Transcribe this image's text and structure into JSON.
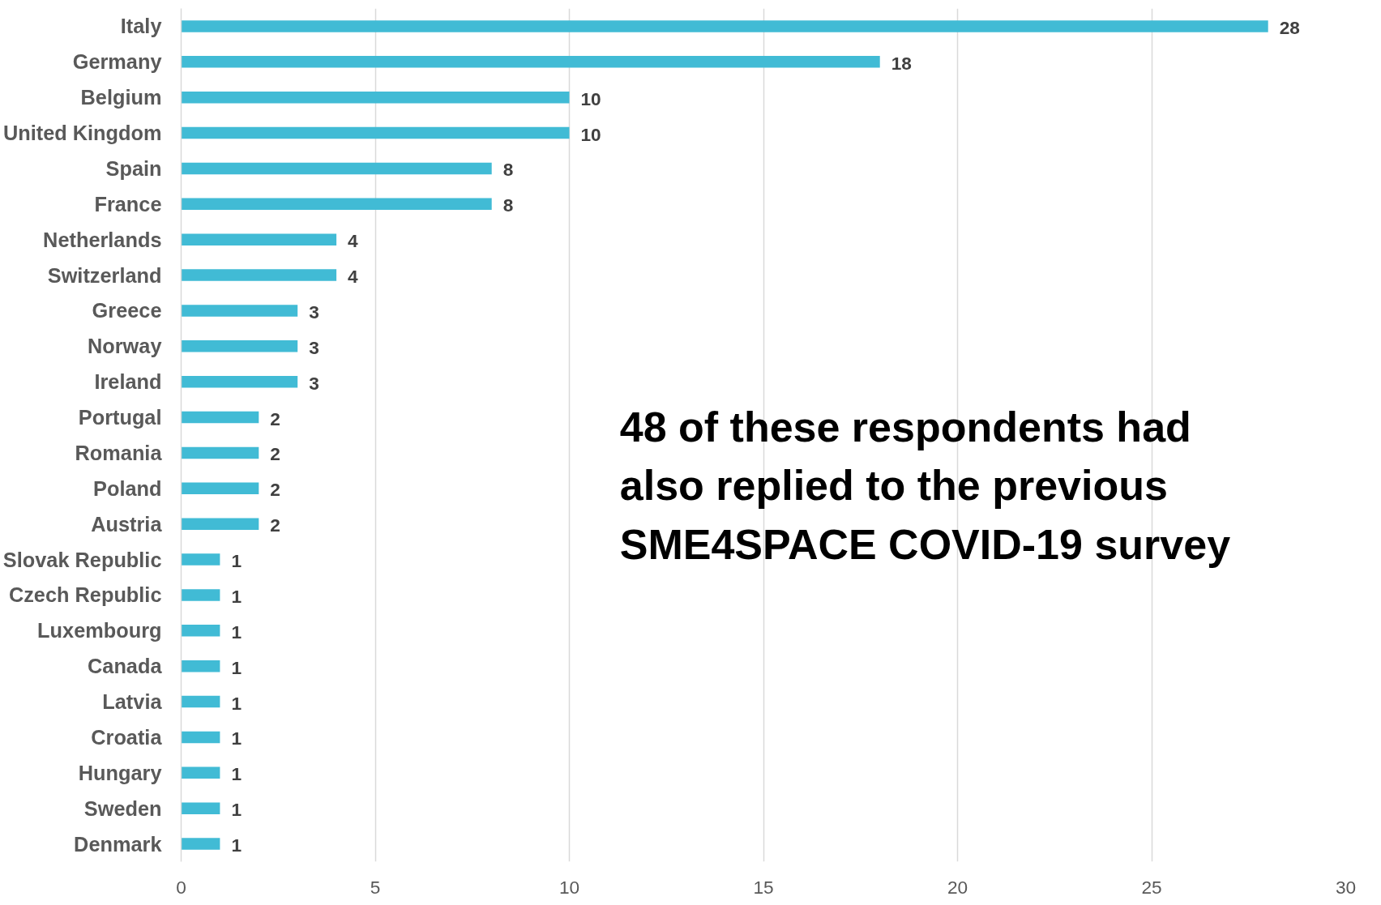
{
  "chart_data": {
    "type": "bar",
    "orientation": "horizontal",
    "categories": [
      "Italy",
      "Germany",
      "Belgium",
      "United Kingdom",
      "Spain",
      "France",
      "Netherlands",
      "Switzerland",
      "Greece",
      "Norway",
      "Ireland",
      "Portugal",
      "Romania",
      "Poland",
      "Austria",
      "Slovak Republic",
      "Czech Republic",
      "Luxembourg",
      "Canada",
      "Latvia",
      "Croatia",
      "Hungary",
      "Sweden",
      "Denmark"
    ],
    "values": [
      28,
      18,
      10,
      10,
      8,
      8,
      4,
      4,
      3,
      3,
      3,
      2,
      2,
      2,
      2,
      1,
      1,
      1,
      1,
      1,
      1,
      1,
      1,
      1
    ],
    "color": "#41bbd5",
    "xlim": [
      0,
      30
    ],
    "xticks": [
      0,
      5,
      10,
      15,
      20,
      25,
      30
    ],
    "grid": "x",
    "data_labels": true,
    "annotations": [
      "48 of these respondents had\nalso replied to the previous\nSME4SPACE COVID-19 survey"
    ]
  }
}
